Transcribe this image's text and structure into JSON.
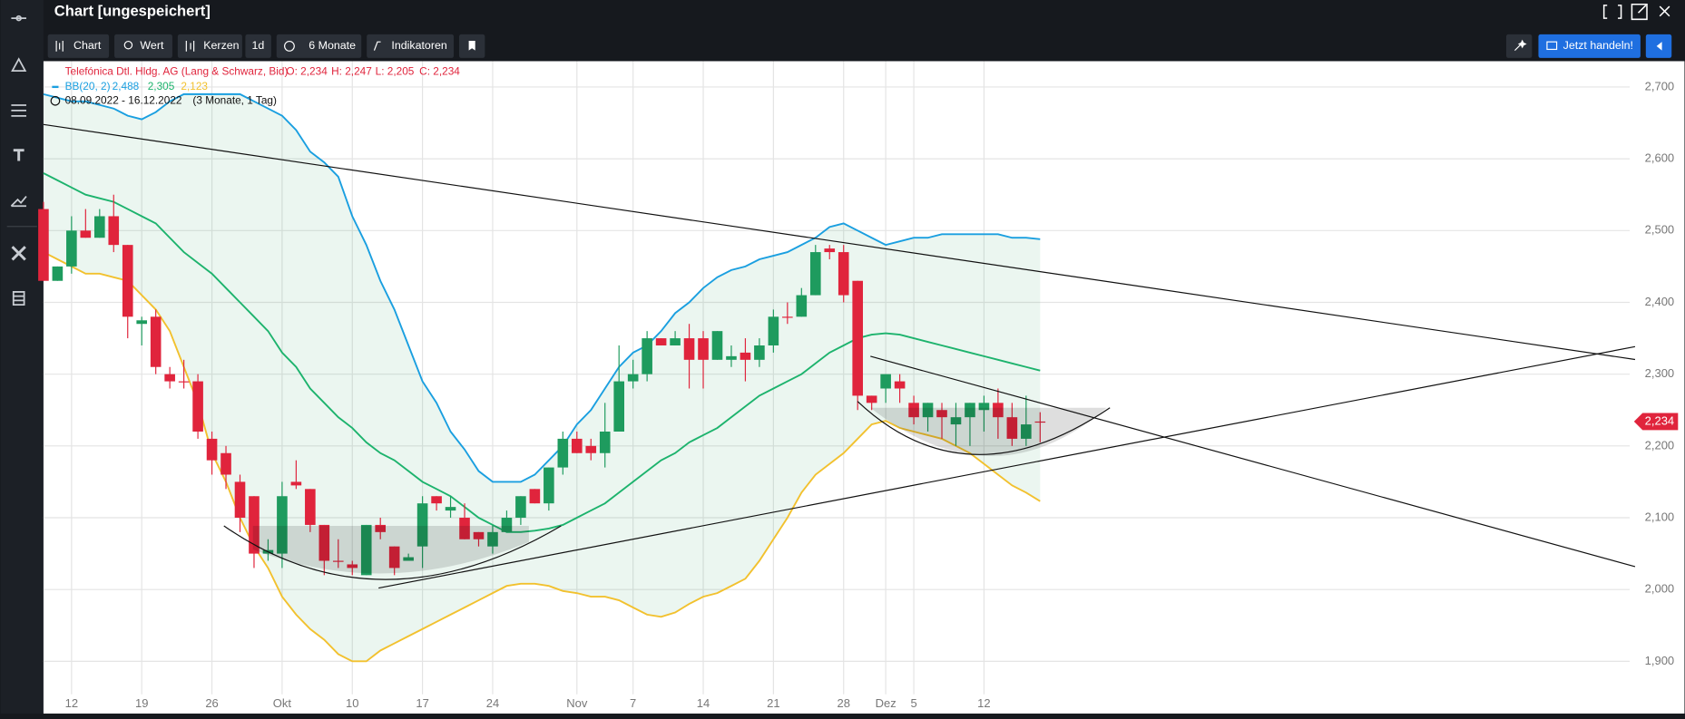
{
  "ui": {
    "title": "Chart [ungespeichert]",
    "toolbar": [
      "Chart",
      "Wert",
      "Kerzen",
      "1d",
      "6 Monate",
      "Indikatoren"
    ],
    "trade_button": "Jetzt handeln!"
  },
  "chart_data": {
    "type": "candlestick",
    "instrument": "Telefónica Dtl. Hldg. AG (Lang & Schwarz, Bid)",
    "ohlc_labels": [
      "O: 2,234",
      "H: 2,247",
      "L: 2,205",
      "C: 2,234"
    ],
    "indicator": "BB(20, 2)",
    "period": "08.09.2022 - 16.12.2022",
    "period_note": "(3 Monate, 1 Tag)",
    "last_label": "2,234",
    "up_color": "#1e9b5e",
    "down_color": "#e0243c",
    "open": [
      2.53,
      2.43,
      2.45,
      2.5,
      2.49,
      2.52,
      2.48,
      2.37,
      2.38,
      2.3,
      2.29,
      2.29,
      2.21,
      2.19,
      2.15,
      2.13,
      2.05,
      2.05,
      2.15,
      2.14,
      2.09,
      2.04,
      2.035,
      2.02,
      2.09,
      2.06,
      2.04,
      2.06,
      2.13,
      2.11,
      2.1,
      2.08,
      2.06,
      2.08,
      2.1,
      2.14,
      2.12,
      2.17,
      2.21,
      2.2,
      2.19,
      2.22,
      2.29,
      2.3,
      2.35,
      2.34,
      2.35,
      2.35,
      2.32,
      2.32,
      2.33,
      2.32,
      2.34,
      2.38,
      2.38,
      2.41,
      2.475,
      2.47,
      2.43,
      2.27,
      2.28,
      2.29,
      2.26,
      2.24,
      2.25,
      2.23,
      2.24,
      2.25,
      2.26,
      2.24,
      2.21,
      2.234
    ],
    "high": [
      2.54,
      2.45,
      2.52,
      2.53,
      2.53,
      2.55,
      2.48,
      2.38,
      2.39,
      2.31,
      2.32,
      2.3,
      2.22,
      2.2,
      2.16,
      2.13,
      2.07,
      2.15,
      2.18,
      2.14,
      2.09,
      2.07,
      2.04,
      2.09,
      2.1,
      2.06,
      2.05,
      2.13,
      2.13,
      2.13,
      2.12,
      2.08,
      2.09,
      2.11,
      2.13,
      2.14,
      2.17,
      2.22,
      2.22,
      2.21,
      2.26,
      2.34,
      2.32,
      2.36,
      2.35,
      2.36,
      2.37,
      2.36,
      2.36,
      2.34,
      2.35,
      2.35,
      2.39,
      2.4,
      2.42,
      2.48,
      2.48,
      2.48,
      2.43,
      2.27,
      2.3,
      2.3,
      2.27,
      2.26,
      2.26,
      2.26,
      2.26,
      2.27,
      2.28,
      2.26,
      2.27,
      2.247
    ],
    "low": [
      2.43,
      2.43,
      2.44,
      2.49,
      2.49,
      2.47,
      2.35,
      2.34,
      2.3,
      2.28,
      2.28,
      2.21,
      2.16,
      2.14,
      2.08,
      2.03,
      2.04,
      2.03,
      2.14,
      2.08,
      2.02,
      2.03,
      2.02,
      2.02,
      2.07,
      2.02,
      2.04,
      2.03,
      2.11,
      2.1,
      2.07,
      2.06,
      2.05,
      2.08,
      2.09,
      2.12,
      2.11,
      2.16,
      2.19,
      2.18,
      2.17,
      2.22,
      2.28,
      2.29,
      2.34,
      2.34,
      2.28,
      2.28,
      2.32,
      2.31,
      2.29,
      2.31,
      2.33,
      2.37,
      2.38,
      2.41,
      2.46,
      2.4,
      2.25,
      2.25,
      2.26,
      2.26,
      2.23,
      2.22,
      2.21,
      2.2,
      2.2,
      2.22,
      2.21,
      2.2,
      2.2,
      2.205
    ],
    "close": [
      2.43,
      2.45,
      2.5,
      2.49,
      2.52,
      2.48,
      2.38,
      2.375,
      2.31,
      2.29,
      2.29,
      2.22,
      2.18,
      2.16,
      2.1,
      2.05,
      2.055,
      2.13,
      2.145,
      2.09,
      2.04,
      2.04,
      2.03,
      2.09,
      2.08,
      2.03,
      2.045,
      2.12,
      2.12,
      2.115,
      2.07,
      2.07,
      2.08,
      2.1,
      2.13,
      2.12,
      2.17,
      2.21,
      2.19,
      2.19,
      2.22,
      2.29,
      2.3,
      2.35,
      2.34,
      2.35,
      2.32,
      2.32,
      2.36,
      2.325,
      2.32,
      2.34,
      2.38,
      2.38,
      2.41,
      2.47,
      2.47,
      2.41,
      2.27,
      2.26,
      2.3,
      2.28,
      2.24,
      2.26,
      2.24,
      2.24,
      2.26,
      2.26,
      2.24,
      2.21,
      2.23,
      2.234
    ],
    "bands": [
      {
        "color": "#1a9fe0",
        "value_label": "2,488",
        "values": [
          2.69,
          2.685,
          2.68,
          2.68,
          2.675,
          2.67,
          2.66,
          2.655,
          2.665,
          2.68,
          2.69,
          2.69,
          2.69,
          2.69,
          2.69,
          2.68,
          2.67,
          2.66,
          2.64,
          2.61,
          2.595,
          2.575,
          2.52,
          2.48,
          2.43,
          2.39,
          2.34,
          2.29,
          2.26,
          2.22,
          2.195,
          2.165,
          2.15,
          2.15,
          2.15,
          2.16,
          2.18,
          2.2,
          2.23,
          2.25,
          2.28,
          2.31,
          2.33,
          2.34,
          2.36,
          2.385,
          2.4,
          2.42,
          2.435,
          2.445,
          2.45,
          2.46,
          2.465,
          2.47,
          2.48,
          2.49,
          2.505,
          2.51,
          2.5,
          2.49,
          2.48,
          2.485,
          2.49,
          2.49,
          2.495,
          2.495,
          2.495,
          2.495,
          2.495,
          2.49,
          2.49,
          2.488
        ]
      },
      {
        "color": "#1db36d",
        "value_label": "2,305",
        "values": [
          2.58,
          2.57,
          2.56,
          2.55,
          2.545,
          2.54,
          2.53,
          2.52,
          2.51,
          2.49,
          2.47,
          2.455,
          2.44,
          2.42,
          2.4,
          2.38,
          2.36,
          2.33,
          2.31,
          2.28,
          2.26,
          2.24,
          2.225,
          2.205,
          2.19,
          2.18,
          2.165,
          2.15,
          2.14,
          2.13,
          2.115,
          2.1,
          2.09,
          2.08,
          2.08,
          2.082,
          2.085,
          2.09,
          2.1,
          2.11,
          2.12,
          2.135,
          2.15,
          2.165,
          2.18,
          2.19,
          2.205,
          2.215,
          2.225,
          2.24,
          2.255,
          2.27,
          2.28,
          2.29,
          2.3,
          2.315,
          2.33,
          2.34,
          2.35,
          2.355,
          2.357,
          2.355,
          2.35,
          2.345,
          2.34,
          2.335,
          2.33,
          2.325,
          2.32,
          2.315,
          2.31,
          2.305
        ]
      },
      {
        "color": "#f2c12e",
        "value_label": "2,123",
        "values": [
          2.47,
          2.46,
          2.45,
          2.44,
          2.44,
          2.435,
          2.43,
          2.41,
          2.39,
          2.36,
          2.31,
          2.26,
          2.19,
          2.15,
          2.1,
          2.06,
          2.03,
          1.99,
          1.965,
          1.945,
          1.93,
          1.91,
          1.9,
          1.9,
          1.915,
          1.925,
          1.935,
          1.945,
          1.955,
          1.965,
          1.975,
          1.985,
          1.995,
          2.005,
          2.008,
          2.008,
          2.005,
          1.998,
          1.995,
          1.99,
          1.99,
          1.985,
          1.975,
          1.965,
          1.962,
          1.968,
          1.98,
          1.99,
          1.995,
          2.005,
          2.015,
          2.04,
          2.07,
          2.1,
          2.135,
          2.16,
          2.175,
          2.19,
          2.21,
          2.23,
          2.235,
          2.225,
          2.22,
          2.215,
          2.21,
          2.2,
          2.19,
          2.175,
          2.16,
          2.145,
          2.135,
          2.123
        ]
      }
    ],
    "xlim": [
      0,
      113
    ],
    "xticks": [
      {
        "value": 2,
        "label": "12"
      },
      {
        "value": 7,
        "label": "19"
      },
      {
        "value": 12,
        "label": "26"
      },
      {
        "value": 17,
        "label": "Okt"
      },
      {
        "value": 22,
        "label": "10"
      },
      {
        "value": 27,
        "label": "17"
      },
      {
        "value": 32,
        "label": "24"
      },
      {
        "value": 38,
        "label": "Nov"
      },
      {
        "value": 42,
        "label": "7"
      },
      {
        "value": 47,
        "label": "14"
      },
      {
        "value": 52,
        "label": "21"
      },
      {
        "value": 57,
        "label": "28"
      },
      {
        "value": 60,
        "label": "Dez"
      },
      {
        "value": 62,
        "label": "5"
      },
      {
        "value": 67,
        "label": "12"
      }
    ],
    "ylim": [
      1.854,
      2.736
    ],
    "yticks": [
      {
        "value": 1.9,
        "label": "1,900"
      },
      {
        "value": 2.0,
        "label": "2,000"
      },
      {
        "value": 2.1,
        "label": "2,100"
      },
      {
        "value": 2.2,
        "label": "2,200"
      },
      {
        "value": 2.3,
        "label": "2,300"
      },
      {
        "value": 2.4,
        "label": "2,400"
      },
      {
        "value": 2.5,
        "label": "2,500"
      },
      {
        "value": 2.6,
        "label": "2,600"
      },
      {
        "value": 2.7,
        "label": "2,700"
      }
    ],
    "grid": true
  }
}
